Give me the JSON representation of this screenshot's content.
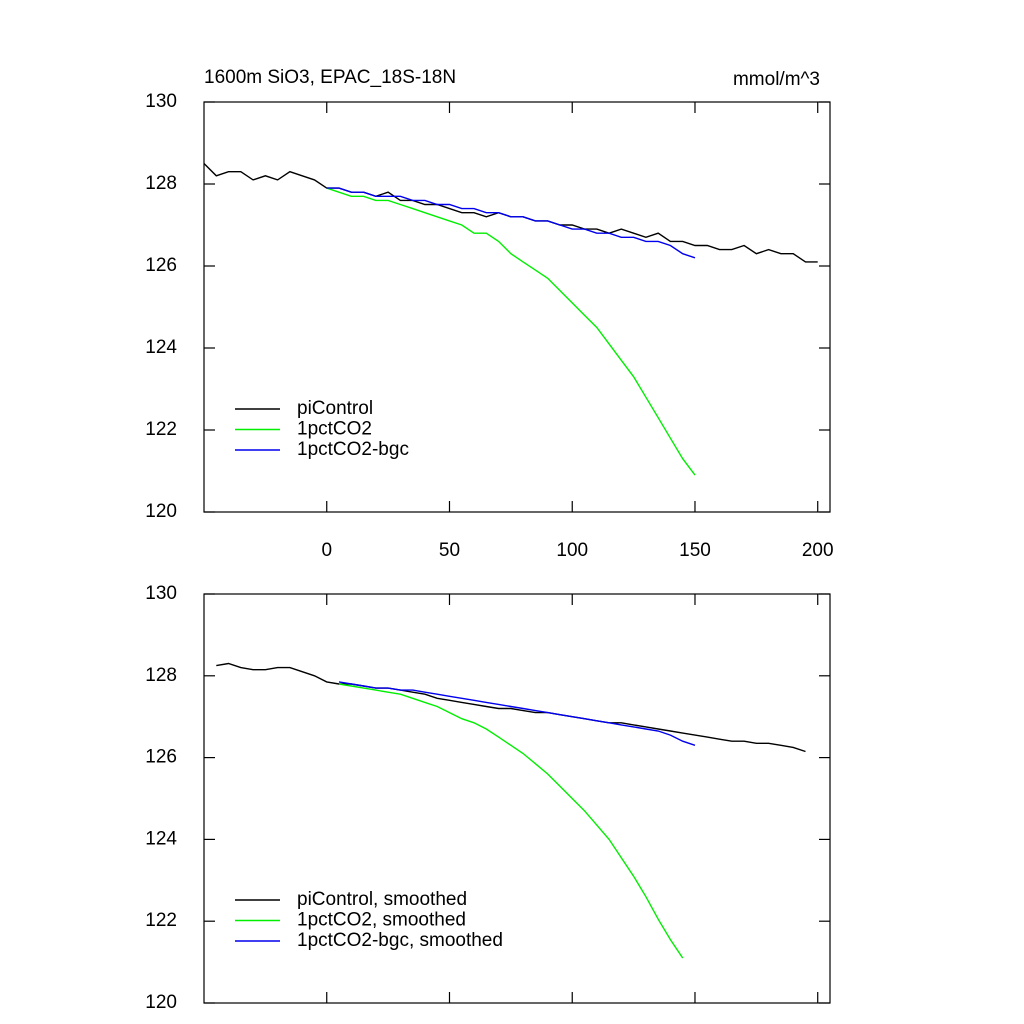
{
  "chart_data": [
    {
      "type": "line",
      "title": "1600m SiO3, EPAC_18S-18N",
      "units_label": "mmol/m^3",
      "x": [
        -50,
        -45,
        -40,
        -35,
        -30,
        -25,
        -20,
        -15,
        -10,
        -5,
        0,
        5,
        10,
        15,
        20,
        25,
        30,
        35,
        40,
        45,
        50,
        55,
        60,
        65,
        70,
        75,
        80,
        85,
        90,
        95,
        100,
        105,
        110,
        115,
        120,
        125,
        130,
        135,
        140,
        145,
        150,
        155,
        160,
        165,
        170,
        175,
        180,
        185,
        190,
        195,
        200
      ],
      "series": [
        {
          "name": "piControl",
          "color": "#000000",
          "values": [
            128.5,
            128.2,
            128.3,
            128.3,
            128.1,
            128.2,
            128.1,
            128.3,
            128.2,
            128.1,
            127.9,
            127.9,
            127.8,
            127.8,
            127.7,
            127.8,
            127.6,
            127.6,
            127.5,
            127.5,
            127.4,
            127.3,
            127.3,
            127.2,
            127.3,
            127.2,
            127.2,
            127.1,
            127.1,
            127.0,
            127.0,
            126.9,
            126.9,
            126.8,
            126.9,
            126.8,
            126.7,
            126.8,
            126.6,
            126.6,
            126.5,
            126.5,
            126.4,
            126.4,
            126.5,
            126.3,
            126.4,
            126.3,
            126.3,
            126.1,
            126.1
          ]
        },
        {
          "name": "1pctCO2",
          "color": "#00ee00",
          "values": [
            null,
            null,
            null,
            null,
            null,
            null,
            null,
            null,
            null,
            null,
            127.9,
            127.8,
            127.7,
            127.7,
            127.6,
            127.6,
            127.5,
            127.4,
            127.3,
            127.2,
            127.1,
            127.0,
            126.8,
            126.8,
            126.6,
            126.3,
            126.1,
            125.9,
            125.7,
            125.4,
            125.1,
            124.8,
            124.5,
            124.1,
            123.7,
            123.3,
            122.8,
            122.3,
            121.8,
            121.3,
            120.9,
            null,
            null,
            null,
            null,
            null,
            null,
            null,
            null,
            null,
            null
          ]
        },
        {
          "name": "1pctCO2-bgc",
          "color": "#0000ee",
          "values": [
            null,
            null,
            null,
            null,
            null,
            null,
            null,
            null,
            null,
            null,
            127.9,
            127.9,
            127.8,
            127.8,
            127.7,
            127.7,
            127.7,
            127.6,
            127.6,
            127.5,
            127.5,
            127.4,
            127.4,
            127.3,
            127.3,
            127.2,
            127.2,
            127.1,
            127.1,
            127.0,
            126.9,
            126.9,
            126.8,
            126.8,
            126.7,
            126.7,
            126.6,
            126.6,
            126.5,
            126.3,
            126.2,
            null,
            null,
            null,
            null,
            null,
            null,
            null,
            null,
            null,
            null
          ]
        }
      ],
      "xlim": [
        -50,
        205
      ],
      "ylim": [
        120,
        130
      ],
      "xticks": [
        0,
        50,
        100,
        150,
        200
      ],
      "yticks": [
        120,
        122,
        124,
        126,
        128,
        130
      ],
      "xtick_labels": true,
      "legend": "lower left"
    },
    {
      "type": "line",
      "x": [
        -50,
        -45,
        -40,
        -35,
        -30,
        -25,
        -20,
        -15,
        -10,
        -5,
        0,
        5,
        10,
        15,
        20,
        25,
        30,
        35,
        40,
        45,
        50,
        55,
        60,
        65,
        70,
        75,
        80,
        85,
        90,
        95,
        100,
        105,
        110,
        115,
        120,
        125,
        130,
        135,
        140,
        145,
        150,
        155,
        160,
        165,
        170,
        175,
        180,
        185,
        190,
        195,
        200
      ],
      "series": [
        {
          "name": "piControl, smoothed",
          "color": "#000000",
          "values": [
            null,
            128.25,
            128.3,
            128.2,
            128.15,
            128.15,
            128.2,
            128.2,
            128.1,
            128.0,
            127.85,
            127.8,
            127.8,
            127.75,
            127.7,
            127.7,
            127.65,
            127.6,
            127.55,
            127.45,
            127.4,
            127.35,
            127.3,
            127.25,
            127.2,
            127.2,
            127.15,
            127.1,
            127.1,
            127.05,
            127.0,
            126.95,
            126.9,
            126.85,
            126.85,
            126.8,
            126.75,
            126.7,
            126.65,
            126.6,
            126.55,
            126.5,
            126.45,
            126.4,
            126.4,
            126.35,
            126.35,
            126.3,
            126.25,
            126.15,
            null
          ]
        },
        {
          "name": "1pctCO2, smoothed",
          "color": "#00ee00",
          "values": [
            null,
            null,
            null,
            null,
            null,
            null,
            null,
            null,
            null,
            null,
            null,
            127.8,
            127.75,
            127.7,
            127.65,
            127.6,
            127.55,
            127.45,
            127.35,
            127.25,
            127.1,
            126.95,
            126.85,
            126.7,
            126.5,
            126.3,
            126.1,
            125.85,
            125.6,
            125.3,
            125.0,
            124.7,
            124.35,
            124.0,
            123.55,
            123.1,
            122.6,
            122.05,
            121.55,
            121.1,
            null,
            null,
            null,
            null,
            null,
            null,
            null,
            null,
            null,
            null,
            null
          ]
        },
        {
          "name": "1pctCO2-bgc, smoothed",
          "color": "#0000ee",
          "values": [
            null,
            null,
            null,
            null,
            null,
            null,
            null,
            null,
            null,
            null,
            null,
            127.85,
            127.8,
            127.75,
            127.7,
            127.7,
            127.65,
            127.65,
            127.6,
            127.55,
            127.5,
            127.45,
            127.4,
            127.35,
            127.3,
            127.25,
            127.2,
            127.15,
            127.1,
            127.05,
            127.0,
            126.95,
            126.9,
            126.85,
            126.8,
            126.75,
            126.7,
            126.65,
            126.55,
            126.4,
            126.3,
            null,
            null,
            null,
            null,
            null,
            null,
            null,
            null,
            null,
            null
          ]
        }
      ],
      "xlim": [
        -50,
        205
      ],
      "ylim": [
        120,
        130
      ],
      "xticks": [
        0,
        50,
        100,
        150,
        200
      ],
      "yticks": [
        120,
        122,
        124,
        126,
        128,
        130
      ],
      "xtick_labels": false,
      "legend": "lower left"
    }
  ]
}
